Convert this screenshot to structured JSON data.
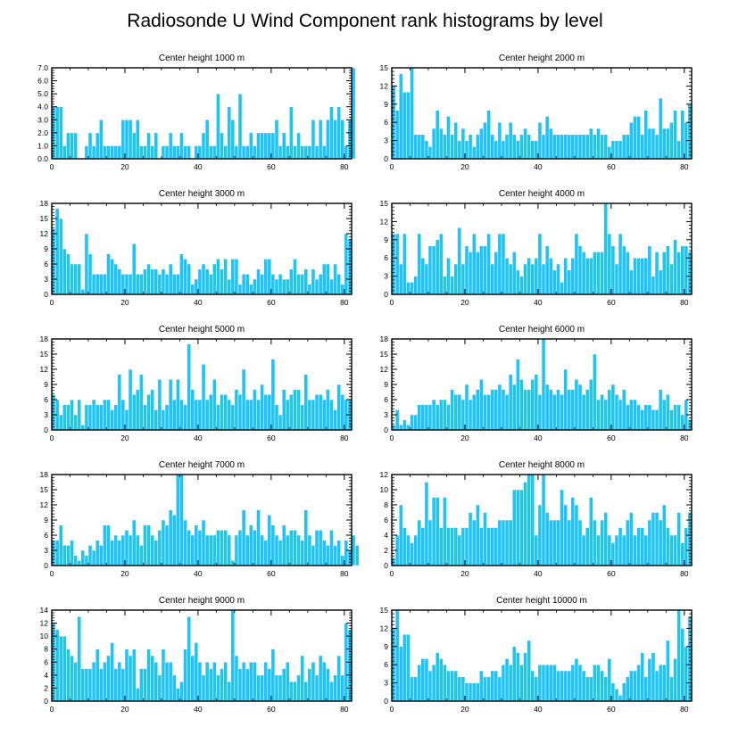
{
  "figure": {
    "title": "Radiosonde U Wind Component rank histograms by level",
    "bar_color": "#1ec4f6",
    "bar_edge_color": "#ffffff"
  },
  "chart_data": [
    {
      "type": "bar",
      "title": "Center height 1000 m",
      "xlim": [
        0,
        82
      ],
      "ylim": [
        0,
        7
      ],
      "xticks": [
        0,
        20,
        40,
        60,
        80
      ],
      "yticks": [
        0,
        1,
        2,
        3,
        4,
        5,
        6,
        7
      ],
      "ytick_labels": [
        "0.0",
        "1.0",
        "2.0",
        "3.0",
        "4.0",
        "5.0",
        "6.0",
        "7.0"
      ],
      "values": [
        4,
        4,
        4,
        1,
        2,
        2,
        2,
        0,
        0,
        1,
        2,
        1,
        2,
        3,
        1,
        1,
        1,
        1,
        1,
        3,
        3,
        3,
        2,
        3,
        1,
        1,
        2,
        1,
        2,
        0,
        1,
        1,
        2,
        1,
        1,
        2,
        1,
        1,
        0,
        1,
        1,
        2,
        3,
        1,
        1,
        5,
        2,
        1,
        4,
        3,
        1,
        5,
        1,
        1,
        2,
        1,
        2,
        2,
        2,
        2,
        2,
        3,
        1,
        2,
        1,
        4,
        1,
        2,
        1,
        1,
        1,
        3,
        1,
        3,
        1,
        3,
        4,
        3,
        4,
        3,
        1,
        3,
        7
      ]
    },
    {
      "type": "bar",
      "title": "Center height 2000 m",
      "xlim": [
        0,
        82
      ],
      "ylim": [
        0,
        15
      ],
      "xticks": [
        0,
        20,
        40,
        60,
        80
      ],
      "yticks": [
        0,
        3,
        6,
        9,
        12,
        15
      ],
      "ytick_labels": [
        "0",
        "3",
        "6",
        "9",
        "12",
        "15"
      ],
      "values": [
        12,
        8,
        14,
        11,
        11,
        15,
        4,
        4,
        4,
        3,
        2,
        5,
        8,
        5,
        4,
        7,
        4,
        6,
        3,
        5,
        3,
        4,
        2,
        4,
        5,
        6,
        8,
        4,
        3,
        6,
        3,
        4,
        6,
        4,
        3,
        4,
        5,
        4,
        3,
        3,
        6,
        4,
        7,
        5,
        4,
        4,
        4,
        4,
        4,
        4,
        4,
        4,
        4,
        4,
        5,
        4,
        5,
        4,
        4,
        2,
        3,
        3,
        3,
        4,
        4,
        6,
        7,
        7,
        4,
        8,
        5,
        5,
        4,
        10,
        5,
        5,
        6,
        8,
        3,
        8,
        6,
        9
      ]
    },
    {
      "type": "bar",
      "title": "Center height 3000 m",
      "xlim": [
        0,
        82
      ],
      "ylim": [
        0,
        18
      ],
      "xticks": [
        0,
        20,
        40,
        60,
        80
      ],
      "yticks": [
        0,
        3,
        6,
        9,
        12,
        15,
        18
      ],
      "ytick_labels": [
        "0",
        "3",
        "6",
        "9",
        "12",
        "15",
        "18"
      ],
      "values": [
        13,
        17,
        15,
        9,
        8,
        6,
        6,
        6,
        1,
        12,
        8,
        4,
        4,
        4,
        4,
        8,
        7,
        6,
        5,
        4,
        4,
        4,
        10,
        4,
        4,
        5,
        6,
        5,
        5,
        4,
        5,
        4,
        6,
        4,
        4,
        8,
        7,
        6,
        2,
        3,
        5,
        6,
        5,
        4,
        6,
        7,
        5,
        7,
        3,
        7,
        7,
        2,
        4,
        4,
        2,
        3,
        5,
        4,
        7,
        7,
        4,
        3,
        4,
        3,
        3,
        5,
        7,
        4,
        4,
        5,
        2,
        5,
        3,
        4,
        6,
        6,
        3,
        6,
        4,
        2,
        12,
        11
      ]
    },
    {
      "type": "bar",
      "title": "Center height 4000 m",
      "xlim": [
        0,
        82
      ],
      "ylim": [
        0,
        15
      ],
      "xticks": [
        0,
        20,
        40,
        60,
        80
      ],
      "yticks": [
        0,
        3,
        6,
        9,
        12,
        15
      ],
      "ytick_labels": [
        "0",
        "3",
        "6",
        "9",
        "12",
        "15"
      ],
      "values": [
        10,
        10,
        5,
        10,
        2,
        2,
        3,
        10,
        6,
        5,
        8,
        8,
        9,
        10,
        3,
        6,
        3,
        5,
        11,
        5,
        8,
        7,
        10,
        7,
        8,
        8,
        10,
        5,
        7,
        10,
        10,
        6,
        5,
        7,
        4,
        3,
        5,
        6,
        5,
        6,
        10,
        5,
        8,
        6,
        4,
        5,
        2,
        6,
        4,
        6,
        10,
        8,
        7,
        6,
        6,
        7,
        7,
        7,
        15,
        10,
        8,
        5,
        10,
        8,
        7,
        4,
        6,
        6,
        6,
        6,
        8,
        3,
        7,
        4,
        7,
        8,
        5,
        9,
        7,
        8,
        8,
        7
      ]
    },
    {
      "type": "bar",
      "title": "Center height 5000 m",
      "xlim": [
        0,
        82
      ],
      "ylim": [
        0,
        18
      ],
      "xticks": [
        0,
        20,
        40,
        60,
        80
      ],
      "yticks": [
        0,
        3,
        6,
        9,
        12,
        15,
        18
      ],
      "ytick_labels": [
        "0",
        "3",
        "6",
        "9",
        "12",
        "15",
        "18"
      ],
      "values": [
        7,
        6,
        3,
        5,
        5,
        6,
        3,
        6,
        1,
        5,
        5,
        6,
        5,
        5,
        6,
        6,
        4,
        5,
        11,
        6,
        4,
        12,
        7,
        8,
        11,
        5,
        7,
        8,
        4,
        10,
        4,
        5,
        10,
        6,
        10,
        6,
        5,
        17,
        8,
        6,
        6,
        13,
        6,
        7,
        10,
        5,
        7,
        7,
        6,
        5,
        8,
        7,
        12,
        6,
        6,
        8,
        6,
        9,
        7,
        7,
        14,
        5,
        3,
        8,
        6,
        7,
        8,
        8,
        5,
        11,
        6,
        6,
        7,
        7,
        6,
        8,
        6,
        4,
        9,
        7,
        6,
        6
      ]
    },
    {
      "type": "bar",
      "title": "Center height 6000 m",
      "xlim": [
        0,
        82
      ],
      "ylim": [
        0,
        18
      ],
      "xticks": [
        0,
        20,
        40,
        60,
        80
      ],
      "yticks": [
        0,
        3,
        6,
        9,
        12,
        15,
        18
      ],
      "ytick_labels": [
        "0",
        "3",
        "6",
        "9",
        "12",
        "15",
        "18"
      ],
      "values": [
        1,
        4,
        1,
        2,
        1,
        3,
        3,
        5,
        5,
        5,
        5,
        6,
        5,
        6,
        6,
        5,
        8,
        7,
        7,
        6,
        9,
        6,
        7,
        8,
        10,
        7,
        7,
        8,
        8,
        9,
        8,
        7,
        11,
        9,
        14,
        10,
        8,
        8,
        10,
        11,
        7,
        18,
        9,
        8,
        7,
        8,
        7,
        12,
        8,
        8,
        10,
        9,
        7,
        8,
        10,
        15,
        6,
        7,
        6,
        8,
        9,
        7,
        6,
        8,
        5,
        6,
        6,
        5,
        4,
        5,
        5,
        4,
        4,
        8,
        6,
        7,
        4,
        5,
        5,
        3,
        6,
        2
      ]
    },
    {
      "type": "bar",
      "title": "Center height 7000 m",
      "xlim": [
        0,
        82
      ],
      "ylim": [
        0,
        18
      ],
      "xticks": [
        0,
        20,
        40,
        60,
        80
      ],
      "yticks": [
        0,
        3,
        6,
        9,
        12,
        15,
        18
      ],
      "ytick_labels": [
        "0",
        "3",
        "6",
        "9",
        "12",
        "15",
        "18"
      ],
      "values": [
        5,
        5,
        8,
        4,
        4,
        5,
        2,
        1,
        3,
        2,
        4,
        3,
        5,
        4,
        8,
        8,
        5,
        6,
        5,
        6,
        7,
        6,
        9,
        6,
        4,
        8,
        8,
        6,
        5,
        7,
        9,
        8,
        11,
        10,
        18,
        18,
        9,
        7,
        6,
        8,
        7,
        9,
        6,
        6,
        6,
        7,
        7,
        7,
        6,
        1,
        6,
        7,
        11,
        6,
        8,
        7,
        11,
        6,
        5,
        10,
        8,
        6,
        5,
        8,
        6,
        7,
        7,
        6,
        5,
        11,
        6,
        4,
        7,
        7,
        5,
        4,
        7,
        4,
        5,
        2,
        5,
        3,
        6,
        4
      ]
    },
    {
      "type": "bar",
      "title": "Center height 8000 m",
      "xlim": [
        0,
        82
      ],
      "ylim": [
        0,
        12
      ],
      "xticks": [
        0,
        20,
        40,
        60,
        80
      ],
      "yticks": [
        0,
        2,
        4,
        6,
        8,
        10,
        12
      ],
      "ytick_labels": [
        "0",
        "2",
        "4",
        "6",
        "8",
        "10",
        "12"
      ],
      "values": [
        1,
        4,
        8,
        5,
        4,
        3,
        4,
        6,
        5,
        11,
        6,
        9,
        9,
        5,
        9,
        5,
        5,
        5,
        4,
        5,
        5,
        7,
        6,
        8,
        5,
        7,
        5,
        5,
        5,
        6,
        6,
        6,
        6,
        10,
        10,
        10,
        11,
        12,
        12,
        4,
        8,
        12,
        7,
        6,
        6,
        6,
        10,
        8,
        6,
        9,
        8,
        6,
        4,
        5,
        9,
        6,
        4,
        6,
        7,
        4,
        3,
        4,
        5,
        4,
        6,
        7,
        4,
        5,
        5,
        4,
        6,
        7,
        7,
        6,
        8,
        5,
        4,
        4,
        7,
        3,
        5,
        7
      ]
    },
    {
      "type": "bar",
      "title": "Center height 9000 m",
      "xlim": [
        0,
        82
      ],
      "ylim": [
        0,
        14
      ],
      "xticks": [
        0,
        20,
        40,
        60,
        80
      ],
      "yticks": [
        0,
        2,
        4,
        6,
        8,
        10,
        12,
        14
      ],
      "ytick_labels": [
        "0",
        "2",
        "4",
        "6",
        "8",
        "10",
        "12",
        "14"
      ],
      "values": [
        12,
        11,
        10,
        10,
        8,
        7,
        6,
        13,
        5,
        5,
        5,
        6,
        8,
        5,
        6,
        7,
        9,
        5,
        6,
        5,
        8,
        7,
        8,
        2,
        5,
        5,
        8,
        7,
        6,
        4,
        8,
        6,
        6,
        4,
        2,
        3,
        8,
        13,
        7,
        9,
        6,
        4,
        6,
        5,
        6,
        4,
        5,
        6,
        3,
        14,
        7,
        5,
        6,
        5,
        6,
        6,
        4,
        4,
        6,
        5,
        8,
        4,
        4,
        5,
        6,
        3,
        3,
        4,
        7,
        3,
        5,
        6,
        4,
        7,
        6,
        5,
        3,
        4,
        7,
        4,
        12,
        11
      ]
    },
    {
      "type": "bar",
      "title": "Center height 10000 m",
      "xlim": [
        0,
        82
      ],
      "ylim": [
        0,
        15
      ],
      "xticks": [
        0,
        20,
        40,
        60,
        80
      ],
      "yticks": [
        0,
        3,
        6,
        9,
        12,
        15
      ],
      "ytick_labels": [
        "0",
        "3",
        "6",
        "9",
        "12",
        "15"
      ],
      "values": [
        12,
        15,
        9,
        11,
        11,
        4,
        4,
        6,
        7,
        7,
        5,
        6,
        8,
        7,
        6,
        5,
        5,
        5,
        4,
        4,
        3,
        3,
        3,
        3,
        5,
        4,
        4,
        5,
        5,
        4,
        6,
        7,
        6,
        9,
        8,
        6,
        8,
        10,
        5,
        4,
        6,
        6,
        6,
        6,
        6,
        5,
        5,
        5,
        5,
        6,
        7,
        6,
        5,
        4,
        4,
        6,
        6,
        5,
        4,
        7,
        3,
        2,
        1,
        3,
        4,
        5,
        5,
        6,
        8,
        4,
        7,
        8,
        5,
        6,
        6,
        10,
        4,
        7,
        15,
        12,
        9,
        14
      ]
    }
  ]
}
